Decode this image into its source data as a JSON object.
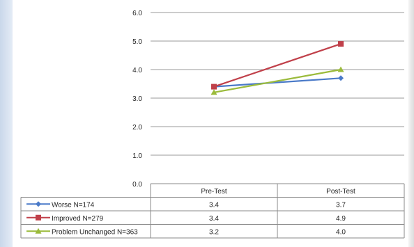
{
  "chart_data": {
    "type": "line",
    "title": "",
    "xlabel": "",
    "ylabel": "",
    "categories": [
      "Pre-Test",
      "Post-Test"
    ],
    "ylim": [
      0,
      6
    ],
    "yticks": [
      "0.0",
      "1.0",
      "2.0",
      "3.0",
      "4.0",
      "5.0",
      "6.0"
    ],
    "grid": true,
    "legend_placement": "data-table-left",
    "series": [
      {
        "name": "Worse N=174",
        "values": [
          3.4,
          3.7
        ],
        "value_labels": [
          "3.4",
          "3.7"
        ],
        "color": "#4a7ac8",
        "marker": "diamond"
      },
      {
        "name": "Improved N=279",
        "values": [
          3.4,
          4.9
        ],
        "value_labels": [
          "3.4",
          "4.9"
        ],
        "color": "#c0404a",
        "marker": "square"
      },
      {
        "name": "Problem Unchanged N=363",
        "values": [
          3.2,
          4.0
        ],
        "value_labels": [
          "3.2",
          "4.0"
        ],
        "color": "#9bbb3b",
        "marker": "triangle"
      }
    ]
  }
}
